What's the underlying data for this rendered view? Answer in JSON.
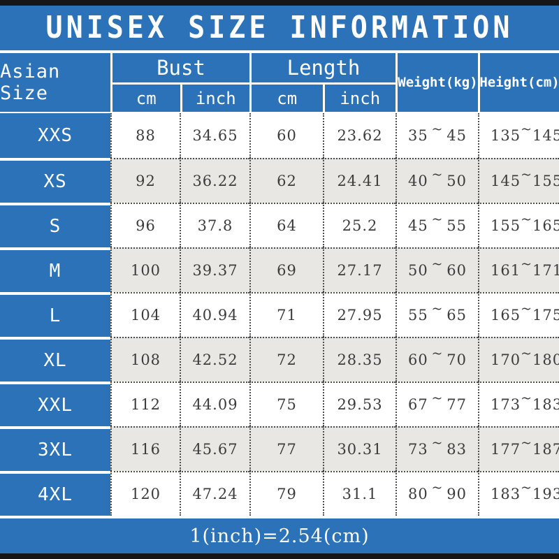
{
  "title": "UNISEX SIZE INFORMATION",
  "footer_note": "1(inch)=2.54(cm)",
  "colors": {
    "accent_blue": "#2b72b8",
    "stripe_gray": "#e9e7e4",
    "frame_black": "#161616",
    "text_dark": "#3c3c3c",
    "text_white": "#ffffff"
  },
  "table": {
    "size_header": "Asian Size",
    "groups": [
      {
        "label": "Bust",
        "sub": [
          "cm",
          "inch"
        ]
      },
      {
        "label": "Length",
        "sub": [
          "cm",
          "inch"
        ]
      }
    ],
    "weight_header": "Weight(kg)",
    "height_header": "Height(cm)",
    "tilde": "~",
    "rows": [
      {
        "size": "XXS",
        "bust_cm": "88",
        "bust_inch": "34.65",
        "length_cm": "60",
        "length_inch": "23.62",
        "weight_min": "35",
        "weight_max": "45",
        "height_min": "135",
        "height_max": "145"
      },
      {
        "size": "XS",
        "bust_cm": "92",
        "bust_inch": "36.22",
        "length_cm": "62",
        "length_inch": "24.41",
        "weight_min": "40",
        "weight_max": "50",
        "height_min": "145",
        "height_max": "155"
      },
      {
        "size": "S",
        "bust_cm": "96",
        "bust_inch": "37.8",
        "length_cm": "64",
        "length_inch": "25.2",
        "weight_min": "45",
        "weight_max": "55",
        "height_min": "155",
        "height_max": "165"
      },
      {
        "size": "M",
        "bust_cm": "100",
        "bust_inch": "39.37",
        "length_cm": "69",
        "length_inch": "27.17",
        "weight_min": "50",
        "weight_max": "60",
        "height_min": "161",
        "height_max": "171"
      },
      {
        "size": "L",
        "bust_cm": "104",
        "bust_inch": "40.94",
        "length_cm": "71",
        "length_inch": "27.95",
        "weight_min": "55",
        "weight_max": "65",
        "height_min": "165",
        "height_max": "175"
      },
      {
        "size": "XL",
        "bust_cm": "108",
        "bust_inch": "42.52",
        "length_cm": "72",
        "length_inch": "28.35",
        "weight_min": "60",
        "weight_max": "70",
        "height_min": "170",
        "height_max": "180"
      },
      {
        "size": "XXL",
        "bust_cm": "112",
        "bust_inch": "44.09",
        "length_cm": "75",
        "length_inch": "29.53",
        "weight_min": "67",
        "weight_max": "77",
        "height_min": "173",
        "height_max": "183"
      },
      {
        "size": "3XL",
        "bust_cm": "116",
        "bust_inch": "45.67",
        "length_cm": "77",
        "length_inch": "30.31",
        "weight_min": "73",
        "weight_max": "83",
        "height_min": "177",
        "height_max": "187"
      },
      {
        "size": "4XL",
        "bust_cm": "120",
        "bust_inch": "47.24",
        "length_cm": "79",
        "length_inch": "31.1",
        "weight_min": "80",
        "weight_max": "90",
        "height_min": "183",
        "height_max": "193"
      }
    ]
  }
}
